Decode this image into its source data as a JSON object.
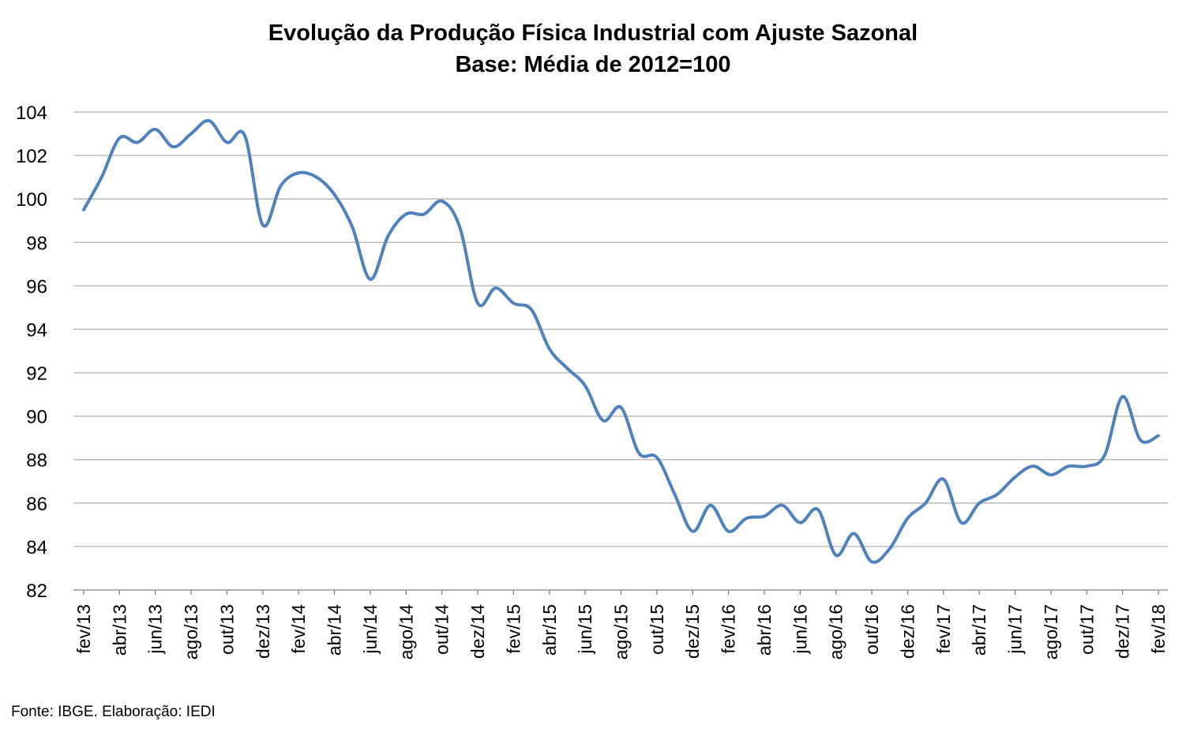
{
  "chart_data": {
    "type": "line",
    "title": "Evolução da Produção Física Industrial com Ajuste Sazonal",
    "subtitle": "Base: Média de 2012=100",
    "xlabel": "",
    "ylabel": "",
    "ylim": [
      82,
      104
    ],
    "yticks": [
      "82",
      "84",
      "86",
      "88",
      "90",
      "92",
      "94",
      "96",
      "98",
      "100",
      "102",
      "104"
    ],
    "grid": true,
    "legend": "none",
    "line_color": "#4F81BD",
    "x": [
      "fev/13",
      "mar/13",
      "abr/13",
      "mai/13",
      "jun/13",
      "jul/13",
      "ago/13",
      "set/13",
      "out/13",
      "nov/13",
      "dez/13",
      "jan/14",
      "fev/14",
      "mar/14",
      "abr/14",
      "mai/14",
      "jun/14",
      "jul/14",
      "ago/14",
      "set/14",
      "out/14",
      "nov/14",
      "dez/14",
      "jan/15",
      "fev/15",
      "mar/15",
      "abr/15",
      "mai/15",
      "jun/15",
      "jul/15",
      "ago/15",
      "set/15",
      "out/15",
      "nov/15",
      "dez/15",
      "jan/16",
      "fev/16",
      "mar/16",
      "abr/16",
      "mai/16",
      "jun/16",
      "jul/16",
      "ago/16",
      "set/16",
      "out/16",
      "nov/16",
      "dez/16",
      "jan/17",
      "fev/17",
      "mar/17",
      "abr/17",
      "mai/17",
      "jun/17",
      "jul/17",
      "ago/17",
      "set/17",
      "out/17",
      "nov/17",
      "dez/17",
      "jan/18",
      "fev/18"
    ],
    "x_tick_labels": [
      "fev/13",
      "abr/13",
      "jun/13",
      "ago/13",
      "out/13",
      "dez/13",
      "fev/14",
      "abr/14",
      "jun/14",
      "ago/14",
      "out/14",
      "dez/14",
      "fev/15",
      "abr/15",
      "jun/15",
      "ago/15",
      "out/15",
      "dez/15",
      "fev/16",
      "abr/16",
      "jun/16",
      "ago/16",
      "out/16",
      "dez/16",
      "fev/17",
      "abr/17",
      "jun/17",
      "ago/17",
      "out/17",
      "dez/17",
      "fev/18"
    ],
    "series": [
      {
        "values": [
          99.5,
          101.0,
          102.8,
          102.6,
          103.2,
          102.4,
          103.0,
          103.6,
          102.6,
          102.9,
          98.8,
          100.6,
          101.2,
          101.0,
          100.2,
          98.7,
          96.3,
          98.3,
          99.3,
          99.3,
          99.9,
          98.7,
          95.2,
          95.9,
          95.2,
          94.9,
          93.1,
          92.2,
          91.4,
          89.8,
          90.4,
          88.3,
          88.1,
          86.4,
          84.7,
          85.9,
          84.7,
          85.3,
          85.4,
          85.9,
          85.1,
          85.7,
          83.6,
          84.6,
          83.3,
          83.9,
          85.3,
          86.0,
          87.1,
          85.1,
          86.0,
          86.4,
          87.2,
          87.7,
          87.3,
          87.7,
          87.7,
          88.2,
          90.9,
          88.9,
          89.1
        ]
      }
    ]
  },
  "footer": {
    "source": "Fonte: IBGE. Elaboração: IEDI"
  }
}
